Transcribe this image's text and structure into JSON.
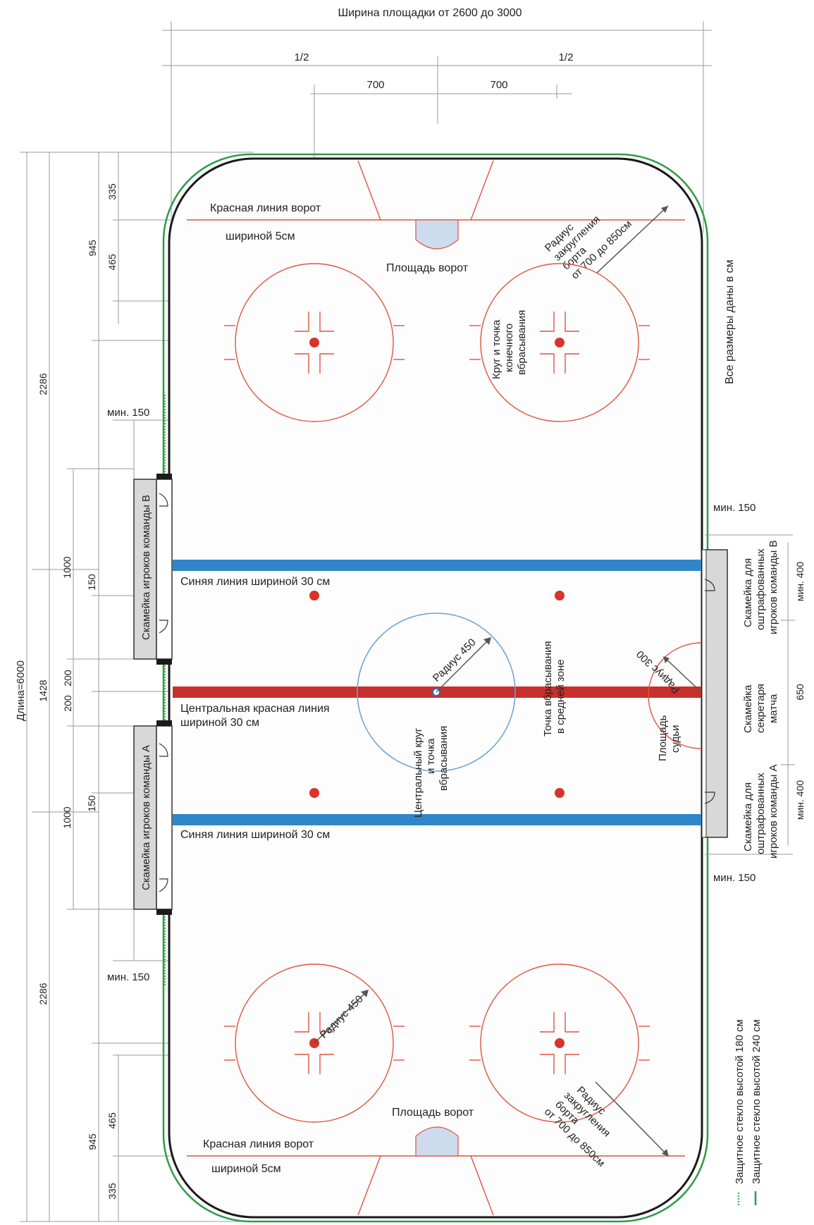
{
  "title": "Ширина площадки от 2600 до 3000",
  "colors": {
    "board": "#1a1a1a",
    "glass_high": "#2e9c48",
    "glass_low": "#47b85a",
    "red_line": "#c8302b",
    "blue_line": "#2f86c8",
    "circle": "#e0533f",
    "center_circle": "#6a9fd8",
    "crease": "#cddbee",
    "bench": "#d8d8d8"
  },
  "dims": {
    "half_left": "1/2",
    "half_right": "1/2",
    "dist_left": "700",
    "dist_right": "700",
    "d335_top": "335",
    "d465_top": "465",
    "d945_top": "945",
    "d2286_top": "2286",
    "d1000_top": "1000",
    "d150_top": "150",
    "d200a": "200",
    "d200b": "200",
    "d1428": "1428",
    "length": "Длина=6000",
    "d1000_bottom": "1000",
    "d150_bottom": "150",
    "d2286_bottom": "2286",
    "d945_bottom": "945",
    "d465_bottom": "465",
    "d335_bottom": "335",
    "min150_left_top": "мин. 150",
    "min150_left_bottom": "мин. 150",
    "min150_right_top": "мин. 150",
    "min150_right_bottom": "мин. 150",
    "min400_top": "мин. 400",
    "min400_bottom": "мин. 400",
    "d650": "650"
  },
  "labels": {
    "goal_line_top_1": "Красная линия ворот",
    "goal_line_top_2": "шириной 5см",
    "goal_crease_top": "Площадь ворот",
    "corner_radius_top": [
      "Радиус",
      "закругления",
      "борта",
      "от 700 до 850см"
    ],
    "faceoff_circle": [
      "Круг и точка",
      "конечного",
      "вбрасывания"
    ],
    "all_dims": "Все размеры даны в см",
    "blue_line_top": "Синяя линия шириной 30 см",
    "blue_line_bottom": "Синяя линия шириной 30 см",
    "center_line_1": "Центральная красная линия",
    "center_line_2": "шириной 30 см",
    "center_radius": "Радиус 450",
    "center_circle": [
      "Центральный круг",
      "и точка",
      "вбрасывания"
    ],
    "neutral_spots": [
      "Точка вбрасывания",
      "в средней зоне"
    ],
    "referee_radius": "Радиус 300",
    "referee_area": [
      "Площадь",
      "судьи"
    ],
    "bench_b": "Скамейка игроков команды В",
    "bench_a": "Скамейка игроков команды А",
    "penalty_b": [
      "Скамейка для",
      "оштрафованных",
      "игроков команды В"
    ],
    "penalty_a": [
      "Скамейка для",
      "оштрафованных",
      "игроков команды А"
    ],
    "secretary": [
      "Скамейка",
      "секретаря",
      "матча"
    ],
    "bottom_radius": "Радиус 450",
    "goal_crease_bottom": "Площадь ворот",
    "goal_line_bottom_1": "Красная линия ворот",
    "goal_line_bottom_2": "шириной 5см",
    "corner_radius_bottom": [
      "Радиус",
      "закругления",
      "борта",
      "от 700 до 850см"
    ],
    "legend_glass_180": "Защитное стекло высотой 180 см",
    "legend_glass_240": "Защитное стекло высотой 240 см"
  }
}
